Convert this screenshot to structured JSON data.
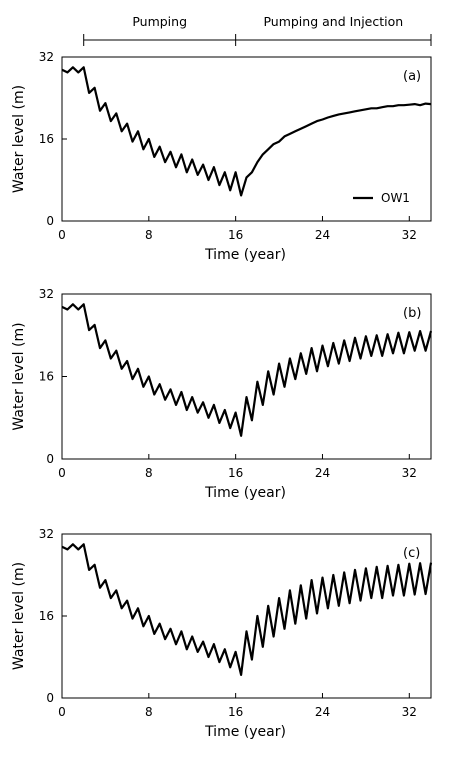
{
  "phases": {
    "pumping_label": "Pumping",
    "injection_label": "Pumping and Injection",
    "x_range": [
      2,
      34
    ],
    "boundary_x": 16
  },
  "legend": {
    "label": "OW1"
  },
  "chart_data": [
    {
      "type": "line",
      "panel_label": "(a)",
      "xlabel": "Time (year)",
      "ylabel": "Water level (m)",
      "xlim": [
        0,
        34
      ],
      "ylim": [
        0,
        32
      ],
      "xticks": [
        0,
        8,
        16,
        24,
        32
      ],
      "yticks": [
        0,
        16,
        32
      ],
      "series": [
        {
          "name": "OW1",
          "x": [
            0,
            0.5,
            1,
            1.5,
            2,
            2.5,
            3,
            3.5,
            4,
            4.5,
            5,
            5.5,
            6,
            6.5,
            7,
            7.5,
            8,
            8.5,
            9,
            9.5,
            10,
            10.5,
            11,
            11.5,
            12,
            12.5,
            13,
            13.5,
            14,
            14.5,
            15,
            15.5,
            16,
            16.5,
            17,
            17.5,
            18,
            18.5,
            19,
            19.5,
            20,
            20.5,
            21,
            21.5,
            22,
            22.5,
            23,
            23.5,
            24,
            24.5,
            25,
            25.5,
            26,
            26.5,
            27,
            27.5,
            28,
            28.5,
            29,
            29.5,
            30,
            30.5,
            31,
            31.5,
            32,
            32.5,
            33,
            33.5,
            34
          ],
          "y": [
            29.5,
            29,
            30,
            29,
            30,
            25,
            26,
            21.5,
            23,
            19.5,
            21,
            17.5,
            19,
            15.5,
            17.5,
            14,
            16,
            12.5,
            14.5,
            11.5,
            13.5,
            10.5,
            13,
            9.5,
            12,
            9,
            11,
            8,
            10.5,
            7,
            9.5,
            6,
            9.5,
            5,
            8.5,
            9.5,
            11.5,
            13,
            14,
            15,
            15.5,
            16.5,
            17,
            17.5,
            18,
            18.5,
            19,
            19.5,
            19.8,
            20.2,
            20.5,
            20.8,
            21,
            21.2,
            21.4,
            21.6,
            21.8,
            22,
            22,
            22.2,
            22.4,
            22.4,
            22.6,
            22.6,
            22.7,
            22.8,
            22.6,
            22.9,
            22.8
          ]
        }
      ]
    },
    {
      "type": "line",
      "panel_label": "(b)",
      "xlabel": "Time (year)",
      "ylabel": "Water level (m)",
      "xlim": [
        0,
        34
      ],
      "ylim": [
        0,
        32
      ],
      "xticks": [
        0,
        8,
        16,
        24,
        32
      ],
      "yticks": [
        0,
        16,
        32
      ],
      "series": [
        {
          "name": "OW1",
          "x": [
            0,
            0.5,
            1,
            1.5,
            2,
            2.5,
            3,
            3.5,
            4,
            4.5,
            5,
            5.5,
            6,
            6.5,
            7,
            7.5,
            8,
            8.5,
            9,
            9.5,
            10,
            10.5,
            11,
            11.5,
            12,
            12.5,
            13,
            13.5,
            14,
            14.5,
            15,
            15.5,
            16,
            16.5,
            17,
            17.5,
            18,
            18.5,
            19,
            19.5,
            20,
            20.5,
            21,
            21.5,
            22,
            22.5,
            23,
            23.5,
            24,
            24.5,
            25,
            25.5,
            26,
            26.5,
            27,
            27.5,
            28,
            28.5,
            29,
            29.5,
            30,
            30.5,
            31,
            31.5,
            32,
            32.5,
            33,
            33.5,
            34
          ],
          "y": [
            29.5,
            29,
            30,
            29,
            30,
            25,
            26,
            21.5,
            23,
            19.5,
            21,
            17.5,
            19,
            15.5,
            17.5,
            14,
            16,
            12.5,
            14.5,
            11.5,
            13.5,
            10.5,
            13,
            9.5,
            12,
            9,
            11,
            8,
            10.5,
            7,
            9.5,
            6,
            9,
            4.5,
            12,
            7.5,
            15,
            10.5,
            17,
            12.5,
            18.5,
            14,
            19.5,
            15.5,
            20.5,
            16.5,
            21.5,
            17,
            22,
            18,
            22.5,
            18.5,
            23,
            19,
            23.5,
            19.5,
            23.8,
            20,
            24,
            20,
            24.2,
            20.5,
            24.5,
            20.5,
            24.6,
            21,
            24.8,
            21,
            24.8
          ]
        }
      ]
    },
    {
      "type": "line",
      "panel_label": "(c)",
      "xlabel": "Time (year)",
      "ylabel": "Water level (m)",
      "xlim": [
        0,
        34
      ],
      "ylim": [
        0,
        32
      ],
      "xticks": [
        0,
        8,
        16,
        24,
        32
      ],
      "yticks": [
        0,
        16,
        32
      ],
      "series": [
        {
          "name": "OW1",
          "x": [
            0,
            0.5,
            1,
            1.5,
            2,
            2.5,
            3,
            3.5,
            4,
            4.5,
            5,
            5.5,
            6,
            6.5,
            7,
            7.5,
            8,
            8.5,
            9,
            9.5,
            10,
            10.5,
            11,
            11.5,
            12,
            12.5,
            13,
            13.5,
            14,
            14.5,
            15,
            15.5,
            16,
            16.5,
            17,
            17.5,
            18,
            18.5,
            19,
            19.5,
            20,
            20.5,
            21,
            21.5,
            22,
            22.5,
            23,
            23.5,
            24,
            24.5,
            25,
            25.5,
            26,
            26.5,
            27,
            27.5,
            28,
            28.5,
            29,
            29.5,
            30,
            30.5,
            31,
            31.5,
            32,
            32.5,
            33,
            33.5,
            34
          ],
          "y": [
            29.5,
            29,
            30,
            29,
            30,
            25,
            26,
            21.5,
            23,
            19.5,
            21,
            17.5,
            19,
            15.5,
            17.5,
            14,
            16,
            12.5,
            14.5,
            11.5,
            13.5,
            10.5,
            13,
            9.5,
            12,
            9,
            11,
            8,
            10.5,
            7,
            9.5,
            6,
            9,
            4.5,
            13,
            7.5,
            16,
            10,
            18,
            12,
            19.5,
            13.5,
            21,
            14.5,
            22,
            15.5,
            23,
            16.5,
            23.5,
            17.5,
            24,
            18,
            24.5,
            18.5,
            25,
            19,
            25.3,
            19.5,
            25.6,
            19.5,
            25.8,
            20,
            26,
            20,
            26.2,
            20.2,
            26.3,
            20.3,
            26.4
          ]
        }
      ]
    }
  ]
}
